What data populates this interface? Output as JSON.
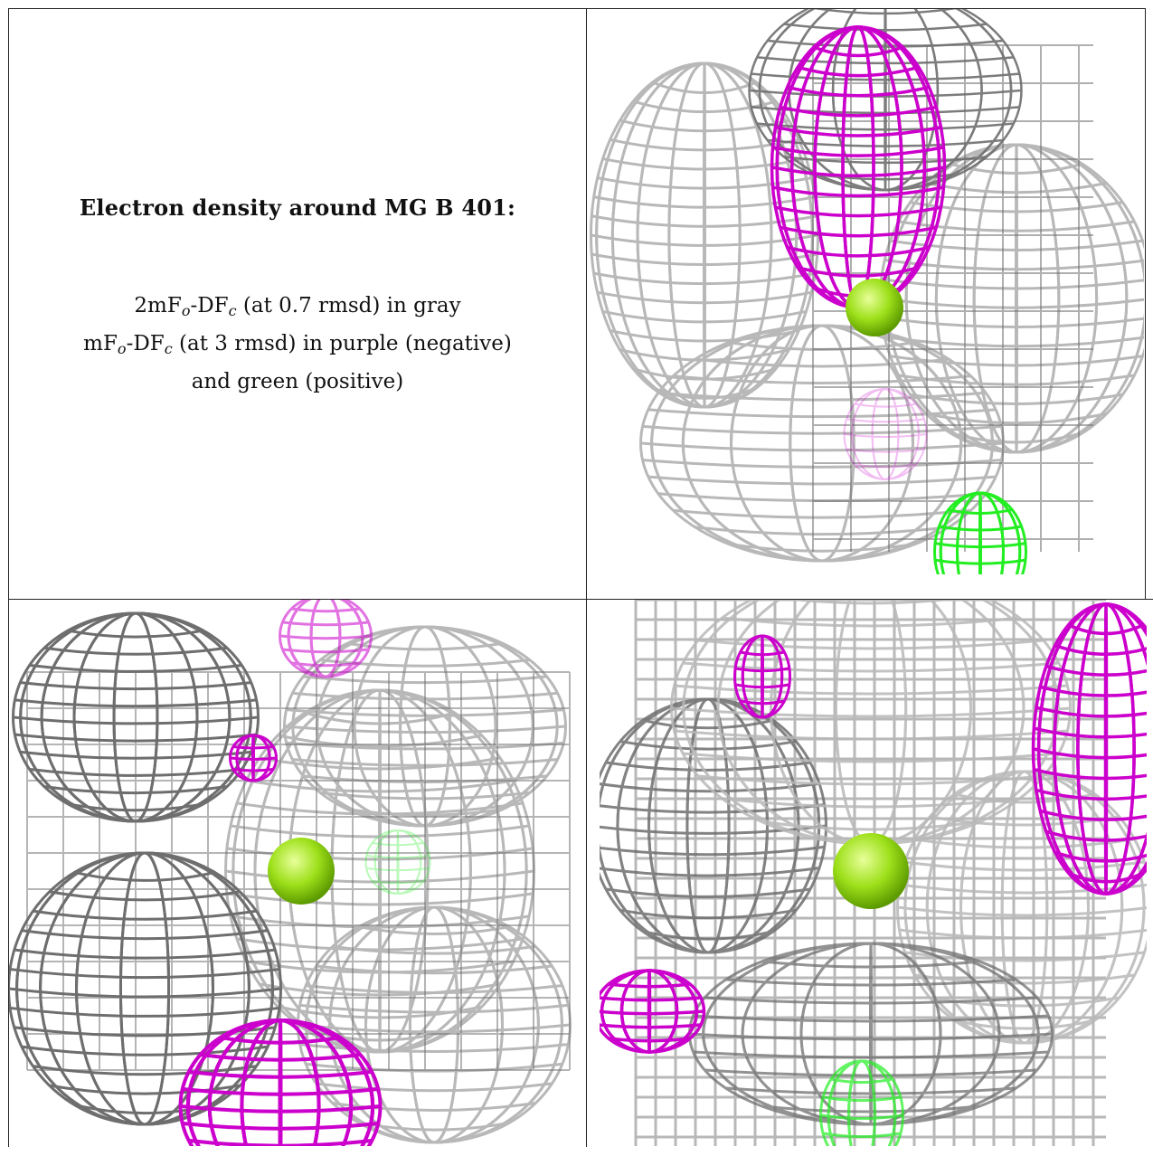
{
  "legend": {
    "title": "Electron density around MG B 401:",
    "line1": {
      "pre": "2mF",
      "sub1": "o",
      "mid": "-DF",
      "sub2": "c",
      "post": " (at 0.7 rmsd) in gray"
    },
    "line2": {
      "pre": "mF",
      "sub1": "o",
      "mid": "-DF",
      "sub2": "c",
      "post": " (at 3 rmsd) in purple (negative)"
    },
    "line3": "and green (positive)"
  },
  "colors": {
    "gray_mesh": "#b8b8b8",
    "gray_mesh_dark": "#6e6e6e",
    "negative_mesh": "#cc00cc",
    "positive_mesh": "#22ee22",
    "mg_atom": "#9de01a"
  },
  "panels": [
    {
      "name": "view-1",
      "atom": "MG B 401"
    },
    {
      "name": "view-2",
      "atom": "MG B 401"
    },
    {
      "name": "view-3",
      "atom": "MG B 401"
    }
  ]
}
